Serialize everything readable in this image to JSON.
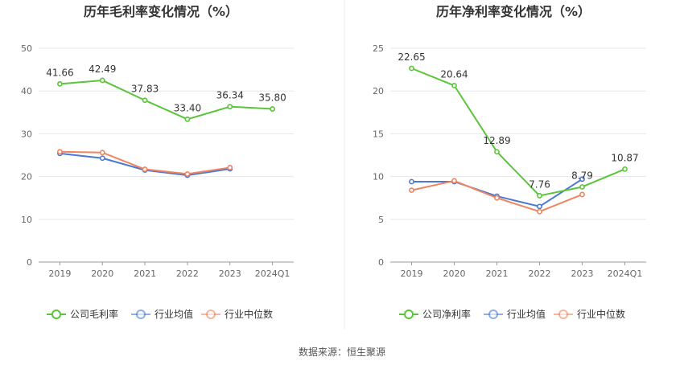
{
  "source_text": "数据来源：恒生聚源",
  "chart_data": [
    {
      "type": "line",
      "title": "历年毛利率变化情况（%）",
      "categories": [
        "2019",
        "2020",
        "2021",
        "2022",
        "2023",
        "2024Q1"
      ],
      "ylim": [
        0,
        50
      ],
      "yticks": [
        0,
        10,
        20,
        30,
        40,
        50
      ],
      "grid": true,
      "legend_position": "bottom",
      "series": [
        {
          "name": "公司毛利率",
          "color": "#5ac43a",
          "values": [
            41.66,
            42.49,
            37.83,
            33.4,
            36.34,
            35.8
          ],
          "labels": [
            "41.66",
            "42.49",
            "37.83",
            "33.40",
            "36.34",
            "35.80"
          ]
        },
        {
          "name": "行业均值",
          "color": "#4a78d4",
          "values": [
            25.4,
            24.3,
            21.5,
            20.3,
            21.8,
            null
          ]
        },
        {
          "name": "行业中位数",
          "color": "#f0845e",
          "values": [
            25.8,
            25.6,
            21.7,
            20.6,
            22.1,
            null
          ]
        }
      ]
    },
    {
      "type": "line",
      "title": "历年净利率变化情况（%）",
      "categories": [
        "2019",
        "2020",
        "2021",
        "2022",
        "2023",
        "2024Q1"
      ],
      "ylim": [
        0,
        25
      ],
      "yticks": [
        0,
        5,
        10,
        15,
        20,
        25
      ],
      "grid": true,
      "legend_position": "bottom",
      "series": [
        {
          "name": "公司净利率",
          "color": "#5ac43a",
          "values": [
            22.65,
            20.64,
            12.89,
            7.76,
            8.79,
            10.87
          ],
          "labels": [
            "22.65",
            "20.64",
            "12.89",
            "7.76",
            "8.79",
            "10.87"
          ]
        },
        {
          "name": "行业均值",
          "color": "#4a78d4",
          "values": [
            9.4,
            9.4,
            7.7,
            6.5,
            9.7,
            null
          ]
        },
        {
          "name": "行业中位数",
          "color": "#f0845e",
          "values": [
            8.4,
            9.5,
            7.5,
            5.9,
            7.9,
            null
          ]
        }
      ]
    }
  ]
}
